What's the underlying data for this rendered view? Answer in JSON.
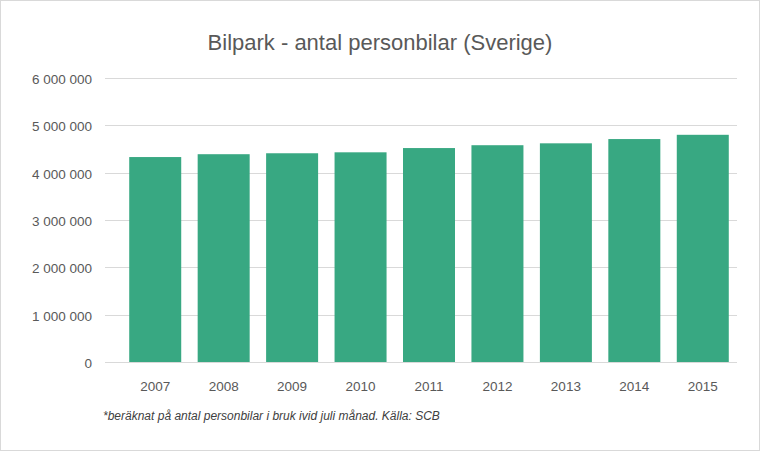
{
  "chart_data": {
    "type": "bar",
    "title": "Bilpark - antal personbilar (Sverige)",
    "note": "*beräknat på antal personbilar i bruk ivid juli månad. Källa: SCB",
    "categories": [
      "2007",
      "2008",
      "2009",
      "2010",
      "2011",
      "2012",
      "2013",
      "2014",
      "2015"
    ],
    "values": [
      4330000,
      4390000,
      4410000,
      4430000,
      4520000,
      4580000,
      4620000,
      4710000,
      4800000
    ],
    "color": "#38a882",
    "ylim": [
      0,
      6000000
    ],
    "yticks": [
      0,
      {
        "value": 1000000,
        "label": "1 000 000"
      },
      {
        "value": 2000000,
        "label": "2 000 000"
      },
      {
        "value": 3000000,
        "label": "3 000 000"
      },
      {
        "value": 4000000,
        "label": "4 000 000"
      },
      {
        "value": 5000000,
        "label": "5 000 000"
      },
      {
        "value": 6000000,
        "label": "6 000 000"
      }
    ],
    "grid": true
  }
}
